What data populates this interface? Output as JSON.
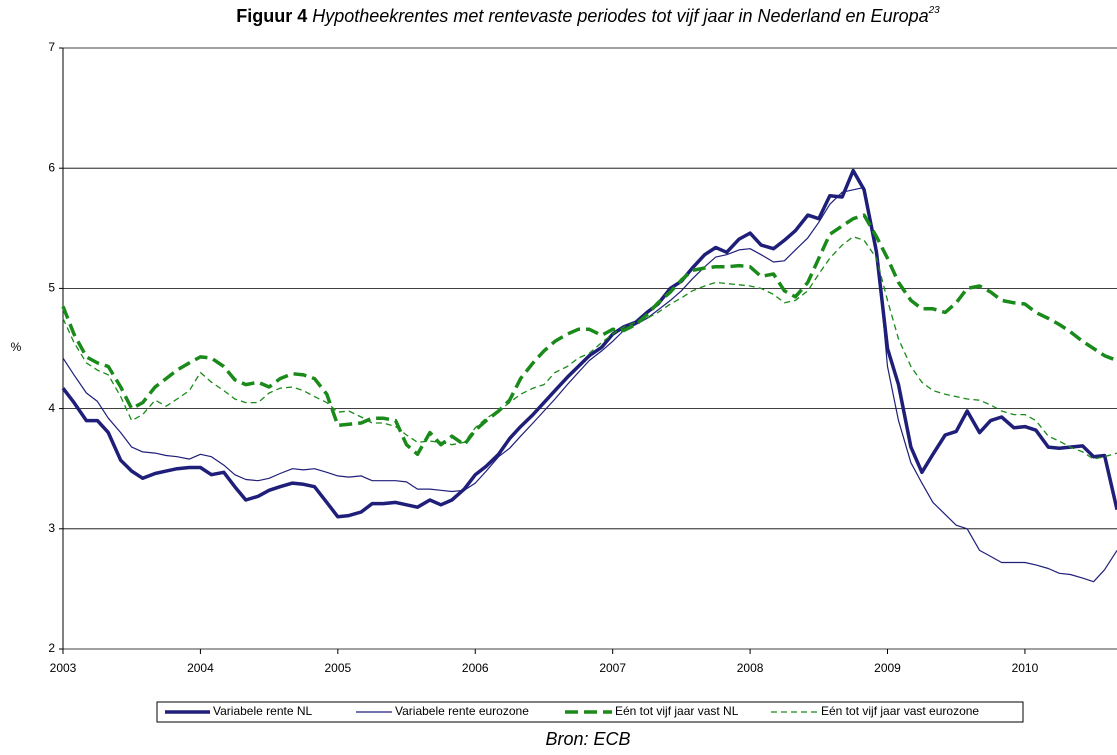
{
  "chart_data": {
    "type": "line",
    "title_label": "Figuur 4",
    "title": "Hypotheekrentes met rentevaste periodes tot vijf jaar in Nederland en Europa",
    "title_footnote": "23",
    "ylabel": "%",
    "source": "Bron: ECB",
    "x": [
      2003,
      2003.08,
      2003.17,
      2003.25,
      2003.33,
      2003.42,
      2003.5,
      2003.58,
      2003.67,
      2003.75,
      2003.83,
      2003.92,
      2004,
      2004.08,
      2004.17,
      2004.25,
      2004.33,
      2004.42,
      2004.5,
      2004.58,
      2004.67,
      2004.75,
      2004.83,
      2004.92,
      2005,
      2005.08,
      2005.17,
      2005.25,
      2005.33,
      2005.42,
      2005.5,
      2005.58,
      2005.67,
      2005.75,
      2005.83,
      2005.92,
      2006,
      2006.08,
      2006.17,
      2006.25,
      2006.33,
      2006.42,
      2006.5,
      2006.58,
      2006.67,
      2006.75,
      2006.83,
      2006.92,
      2007,
      2007.08,
      2007.17,
      2007.25,
      2007.33,
      2007.42,
      2007.5,
      2007.58,
      2007.67,
      2007.75,
      2007.83,
      2007.92,
      2008,
      2008.08,
      2008.17,
      2008.25,
      2008.33,
      2008.42,
      2008.5,
      2008.58,
      2008.67,
      2008.75,
      2008.83,
      2008.92,
      2009,
      2009.08,
      2009.17,
      2009.25,
      2009.33,
      2009.42,
      2009.5,
      2009.58,
      2009.67,
      2009.75,
      2009.83,
      2009.92,
      2010,
      2010.08,
      2010.17,
      2010.25,
      2010.33,
      2010.42,
      2010.5,
      2010.58,
      2010.67
    ],
    "series": [
      {
        "name": "Variabele rente NL",
        "color": "#1f1f7a",
        "values": [
          4.17,
          4.05,
          3.9,
          3.9,
          3.8,
          3.57,
          3.48,
          3.42,
          3.46,
          3.48,
          3.5,
          3.51,
          3.51,
          3.45,
          3.47,
          3.35,
          3.24,
          3.27,
          3.32,
          3.35,
          3.38,
          3.37,
          3.35,
          3.22,
          3.1,
          3.11,
          3.14,
          3.21,
          3.21,
          3.22,
          3.2,
          3.18,
          3.24,
          3.2,
          3.24,
          3.33,
          3.45,
          3.52,
          3.62,
          3.75,
          3.85,
          3.95,
          4.05,
          4.15,
          4.26,
          4.35,
          4.44,
          4.51,
          4.62,
          4.68,
          4.72,
          4.8,
          4.87,
          5.0,
          5.06,
          5.17,
          5.28,
          5.34,
          5.3,
          5.41,
          5.46,
          5.36,
          5.33,
          5.4,
          5.48,
          5.61,
          5.58,
          5.77,
          5.76,
          5.98,
          5.82,
          5.3,
          4.5,
          4.2,
          3.68,
          3.47,
          3.62,
          3.78,
          3.81,
          3.98,
          3.8,
          3.9,
          3.93,
          3.84,
          3.85,
          3.82,
          3.68,
          3.67,
          3.68,
          3.69,
          3.6,
          3.61,
          3.16
        ]
      },
      {
        "name": "Variabele rente eurozone",
        "color": "#1f1f7a",
        "values": [
          4.42,
          4.28,
          4.13,
          4.06,
          3.92,
          3.8,
          3.68,
          3.64,
          3.63,
          3.61,
          3.6,
          3.58,
          3.62,
          3.6,
          3.53,
          3.45,
          3.41,
          3.4,
          3.42,
          3.46,
          3.5,
          3.49,
          3.5,
          3.47,
          3.44,
          3.43,
          3.44,
          3.4,
          3.4,
          3.4,
          3.39,
          3.33,
          3.33,
          3.32,
          3.31,
          3.32,
          3.38,
          3.48,
          3.6,
          3.67,
          3.77,
          3.88,
          3.98,
          4.08,
          4.2,
          4.3,
          4.4,
          4.48,
          4.56,
          4.65,
          4.7,
          4.75,
          4.82,
          4.9,
          4.98,
          5.08,
          5.18,
          5.26,
          5.28,
          5.32,
          5.33,
          5.28,
          5.22,
          5.23,
          5.32,
          5.42,
          5.55,
          5.7,
          5.8,
          5.82,
          5.84,
          5.35,
          4.35,
          3.9,
          3.55,
          3.38,
          3.22,
          3.12,
          3.03,
          3.0,
          2.82,
          2.77,
          2.72,
          2.72,
          2.72,
          2.7,
          2.67,
          2.63,
          2.62,
          2.59,
          2.56,
          2.66,
          2.82
        ]
      },
      {
        "name": "Eén tot vijf jaar vast NL",
        "color": "#1a8a1a",
        "values": [
          4.85,
          4.62,
          4.43,
          4.38,
          4.35,
          4.18,
          4.0,
          4.05,
          4.18,
          4.25,
          4.32,
          4.38,
          4.43,
          4.42,
          4.35,
          4.24,
          4.2,
          4.22,
          4.18,
          4.25,
          4.29,
          4.28,
          4.25,
          4.12,
          3.86,
          3.87,
          3.88,
          3.92,
          3.92,
          3.9,
          3.7,
          3.62,
          3.8,
          3.7,
          3.77,
          3.7,
          3.82,
          3.9,
          3.98,
          4.07,
          4.25,
          4.38,
          4.48,
          4.56,
          4.62,
          4.66,
          4.66,
          4.61,
          4.66,
          4.65,
          4.7,
          4.78,
          4.88,
          4.97,
          5.07,
          5.15,
          5.17,
          5.18,
          5.18,
          5.19,
          5.18,
          5.1,
          5.12,
          4.98,
          4.93,
          5.05,
          5.25,
          5.45,
          5.52,
          5.58,
          5.61,
          5.43,
          5.25,
          5.05,
          4.9,
          4.83,
          4.83,
          4.8,
          4.88,
          5.0,
          5.02,
          4.97,
          4.9,
          4.88,
          4.87,
          4.8,
          4.75,
          4.7,
          4.64,
          4.56,
          4.5,
          4.44,
          4.4
        ]
      },
      {
        "name": "Eén tot vijf jaar vast eurozone",
        "color": "#1a8a1a",
        "values": [
          4.75,
          4.55,
          4.38,
          4.32,
          4.28,
          4.1,
          3.9,
          3.95,
          4.07,
          4.02,
          4.08,
          4.15,
          4.3,
          4.22,
          4.15,
          4.08,
          4.05,
          4.05,
          4.13,
          4.17,
          4.18,
          4.15,
          4.1,
          4.05,
          3.97,
          3.98,
          3.93,
          3.88,
          3.88,
          3.85,
          3.78,
          3.72,
          3.73,
          3.72,
          3.7,
          3.72,
          3.84,
          3.92,
          3.98,
          4.05,
          4.12,
          4.17,
          4.2,
          4.3,
          4.35,
          4.42,
          4.46,
          4.55,
          4.62,
          4.68,
          4.72,
          4.75,
          4.8,
          4.87,
          4.92,
          4.98,
          5.02,
          5.05,
          5.04,
          5.03,
          5.02,
          5.0,
          4.95,
          4.88,
          4.9,
          4.98,
          5.12,
          5.25,
          5.36,
          5.43,
          5.4,
          5.25,
          4.9,
          4.58,
          4.35,
          4.22,
          4.15,
          4.12,
          4.1,
          4.08,
          4.07,
          4.03,
          3.98,
          3.95,
          3.95,
          3.9,
          3.77,
          3.73,
          3.68,
          3.64,
          3.58,
          3.6,
          3.63
        ]
      }
    ],
    "xlim": [
      2003,
      2010.67
    ],
    "xticks": [
      2003,
      2004,
      2005,
      2006,
      2007,
      2008,
      2009,
      2010
    ],
    "ylim": [
      2,
      7
    ],
    "yticks": [
      2,
      3,
      4,
      5,
      6,
      7
    ],
    "grid": true,
    "legend": "bottom"
  }
}
